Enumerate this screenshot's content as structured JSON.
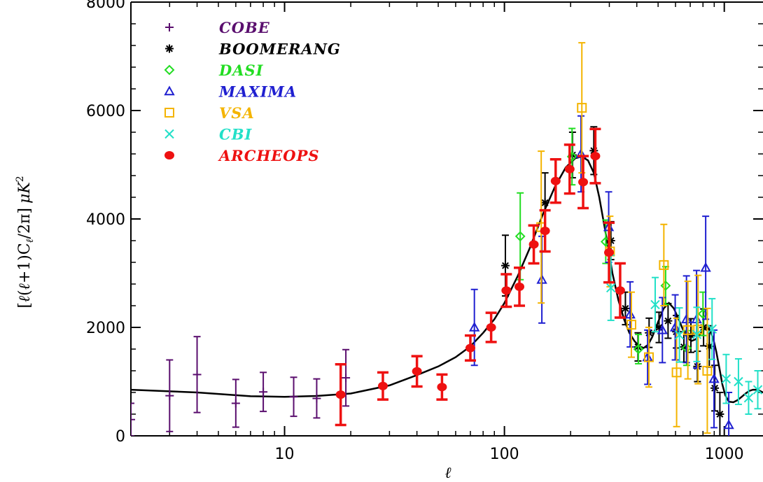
{
  "chart_data": {
    "type": "scatter",
    "title": "",
    "xlabel": "ℓ",
    "ylabel": "[ℓ(ℓ+1)C_ℓ/2π] μK²",
    "ylabel_parts": {
      "lb": "[",
      "l1": "ℓ",
      "open1": "(",
      "l2": "ℓ",
      "plus": "+1)C",
      "sub": "ℓ",
      "rest": "/2π]",
      "unit": "μK",
      "sup": "2"
    },
    "x_scale": "log",
    "xlim": [
      2,
      1500
    ],
    "ylim": [
      0,
      8000
    ],
    "x_ticks": [
      10,
      100,
      1000
    ],
    "x_tick_labels": [
      "10",
      "100",
      "1000"
    ],
    "y_ticks": [
      0,
      2000,
      4000,
      6000,
      8000
    ],
    "y_tick_labels": [
      "0",
      "2000",
      "4000",
      "6000",
      "8000"
    ],
    "grid": false,
    "legend_position": "top-left",
    "model_curve": {
      "color": "#000000",
      "x": [
        2,
        4,
        7,
        10,
        14,
        20,
        30,
        40,
        50,
        60,
        70,
        80,
        90,
        100,
        115,
        130,
        150,
        170,
        190,
        210,
        225,
        240,
        255,
        270,
        290,
        310,
        330,
        350,
        370,
        390,
        410,
        430,
        450,
        470,
        500,
        530,
        560,
        590,
        620,
        650,
        680,
        710,
        740,
        770,
        800,
        830,
        860,
        890,
        920,
        950,
        980,
        1010,
        1050,
        1100,
        1150,
        1200,
        1250,
        1300,
        1350,
        1400,
        1450,
        1500
      ],
      "y": [
        850,
        800,
        730,
        720,
        735,
        780,
        930,
        1120,
        1280,
        1450,
        1650,
        1900,
        2150,
        2450,
        2950,
        3450,
        4100,
        4600,
        4950,
        5120,
        5150,
        5080,
        4850,
        4400,
        3700,
        3000,
        2500,
        2150,
        1900,
        1750,
        1650,
        1620,
        1680,
        1820,
        2100,
        2350,
        2450,
        2350,
        2150,
        1950,
        1800,
        1750,
        1780,
        1850,
        1950,
        2000,
        1950,
        1800,
        1550,
        1250,
        950,
        750,
        630,
        620,
        660,
        720,
        780,
        830,
        850,
        850,
        830,
        800
      ]
    },
    "series": [
      {
        "name": "COBE",
        "color": "#5a0e6e",
        "marker": "plus",
        "points": [
          {
            "x": 2,
            "y": 300,
            "err": 300
          },
          {
            "x": 3,
            "y": 740,
            "err": 660
          },
          {
            "x": 4,
            "y": 1130,
            "err": 700
          },
          {
            "x": 6,
            "y": 600,
            "err": 440
          },
          {
            "x": 8,
            "y": 810,
            "err": 360
          },
          {
            "x": 11,
            "y": 720,
            "err": 360
          },
          {
            "x": 14,
            "y": 690,
            "err": 360
          },
          {
            "x": 19,
            "y": 1070,
            "err": 520
          }
        ]
      },
      {
        "name": "BOOMERANG",
        "color": "#000000",
        "marker": "asterisk",
        "points": [
          {
            "x": 101,
            "y": 3140,
            "err": 560
          },
          {
            "x": 153,
            "y": 4300,
            "err": 550
          },
          {
            "x": 204,
            "y": 5180,
            "err": 420
          },
          {
            "x": 255,
            "y": 5260,
            "err": 440
          },
          {
            "x": 305,
            "y": 3600,
            "err": 350
          },
          {
            "x": 355,
            "y": 2350,
            "err": 300
          },
          {
            "x": 405,
            "y": 1640,
            "err": 260
          },
          {
            "x": 455,
            "y": 1900,
            "err": 270
          },
          {
            "x": 505,
            "y": 2000,
            "err": 280
          },
          {
            "x": 555,
            "y": 2120,
            "err": 320
          },
          {
            "x": 605,
            "y": 1920,
            "err": 300
          },
          {
            "x": 655,
            "y": 1640,
            "err": 280
          },
          {
            "x": 705,
            "y": 1850,
            "err": 310
          },
          {
            "x": 755,
            "y": 1280,
            "err": 280
          },
          {
            "x": 805,
            "y": 2000,
            "err": 340
          },
          {
            "x": 855,
            "y": 1650,
            "err": 380
          },
          {
            "x": 905,
            "y": 880,
            "err": 420
          },
          {
            "x": 955,
            "y": 400,
            "err": 400
          }
        ]
      },
      {
        "name": "DASI",
        "color": "#22dd22",
        "marker": "diamond",
        "points": [
          {
            "x": 118,
            "y": 3680,
            "err": 800
          },
          {
            "x": 203,
            "y": 5150,
            "err": 520
          },
          {
            "x": 289,
            "y": 3580,
            "err": 400
          },
          {
            "x": 407,
            "y": 1600,
            "err": 270
          },
          {
            "x": 541,
            "y": 2770,
            "err": 350
          },
          {
            "x": 674,
            "y": 1620,
            "err": 320
          },
          {
            "x": 800,
            "y": 2250,
            "err": 400
          }
        ]
      },
      {
        "name": "MAXIMA",
        "color": "#1f1fd0",
        "marker": "triangle",
        "points": [
          {
            "x": 73,
            "y": 2000,
            "err": 700
          },
          {
            "x": 148,
            "y": 2880,
            "err": 800
          },
          {
            "x": 223,
            "y": 5200,
            "err": 700
          },
          {
            "x": 298,
            "y": 3850,
            "err": 650
          },
          {
            "x": 373,
            "y": 2240,
            "err": 600
          },
          {
            "x": 448,
            "y": 1450,
            "err": 500
          },
          {
            "x": 523,
            "y": 1950,
            "err": 600
          },
          {
            "x": 598,
            "y": 2000,
            "err": 600
          },
          {
            "x": 673,
            "y": 2150,
            "err": 800
          },
          {
            "x": 748,
            "y": 2150,
            "err": 900
          },
          {
            "x": 823,
            "y": 3100,
            "err": 950
          },
          {
            "x": 898,
            "y": 1050,
            "err": 900
          },
          {
            "x": 1048,
            "y": 200,
            "err": 600
          }
        ]
      },
      {
        "name": "VSA",
        "color": "#f4b400",
        "marker": "square",
        "points": [
          {
            "x": 147,
            "y": 3850,
            "err": 1400
          },
          {
            "x": 225,
            "y": 6050,
            "err": 1200
          },
          {
            "x": 302,
            "y": 3400,
            "err": 650
          },
          {
            "x": 378,
            "y": 2050,
            "err": 600
          },
          {
            "x": 454,
            "y": 1450,
            "err": 550
          },
          {
            "x": 531,
            "y": 3150,
            "err": 750
          },
          {
            "x": 607,
            "y": 1170,
            "err": 1000
          },
          {
            "x": 683,
            "y": 1950,
            "err": 900
          },
          {
            "x": 760,
            "y": 1960,
            "err": 1000
          },
          {
            "x": 837,
            "y": 1200,
            "err": 1150
          }
        ]
      },
      {
        "name": "CBI",
        "color": "#22e0c8",
        "marker": "cross",
        "points": [
          {
            "x": 305,
            "y": 2730,
            "err": 600
          },
          {
            "x": 485,
            "y": 2420,
            "err": 500
          },
          {
            "x": 625,
            "y": 1860,
            "err": 500
          },
          {
            "x": 750,
            "y": 1870,
            "err": 500
          },
          {
            "x": 880,
            "y": 1970,
            "err": 560
          },
          {
            "x": 1020,
            "y": 1050,
            "err": 450
          },
          {
            "x": 1160,
            "y": 1000,
            "err": 420
          },
          {
            "x": 1290,
            "y": 700,
            "err": 300
          },
          {
            "x": 1420,
            "y": 850,
            "err": 350
          }
        ]
      },
      {
        "name": "ARCHEOPS",
        "color": "#ee1111",
        "marker": "dot",
        "points": [
          {
            "x": 18,
            "y": 760,
            "err": 560
          },
          {
            "x": 28,
            "y": 920,
            "err": 250
          },
          {
            "x": 40,
            "y": 1190,
            "err": 280
          },
          {
            "x": 52,
            "y": 900,
            "err": 230
          },
          {
            "x": 70,
            "y": 1620,
            "err": 230
          },
          {
            "x": 87,
            "y": 2000,
            "err": 270
          },
          {
            "x": 102,
            "y": 2680,
            "err": 300
          },
          {
            "x": 117,
            "y": 2750,
            "err": 350
          },
          {
            "x": 136,
            "y": 3530,
            "err": 350
          },
          {
            "x": 153,
            "y": 3780,
            "err": 380
          },
          {
            "x": 171,
            "y": 4700,
            "err": 400
          },
          {
            "x": 198,
            "y": 4920,
            "err": 450
          },
          {
            "x": 228,
            "y": 4680,
            "err": 480
          },
          {
            "x": 259,
            "y": 5160,
            "err": 500
          },
          {
            "x": 299,
            "y": 3380,
            "err": 550
          },
          {
            "x": 336,
            "y": 2680,
            "err": 500
          }
        ]
      }
    ]
  }
}
